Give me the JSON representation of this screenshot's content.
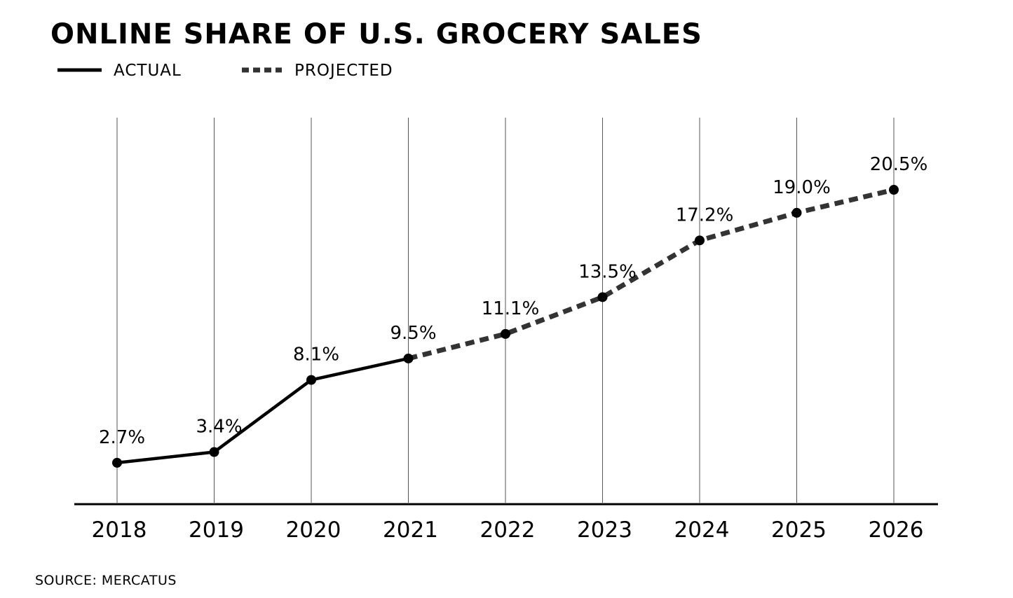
{
  "chart_data": {
    "type": "line",
    "title": "ONLINE SHARE OF U.S. GROCERY SALES",
    "xlabel": "",
    "ylabel": "",
    "ylim": [
      0,
      22
    ],
    "grid": "vertical",
    "legend_position": "top-left",
    "categories": [
      "2018",
      "2019",
      "2020",
      "2021",
      "2022",
      "2023",
      "2024",
      "2025",
      "2026"
    ],
    "data_labels": [
      "2.7%",
      "3.4%",
      "8.1%",
      "9.5%",
      "11.1%",
      "13.5%",
      "17.2%",
      "19.0%",
      "20.5%"
    ],
    "series": [
      {
        "name": "ACTUAL",
        "style": "solid",
        "x": [
          "2018",
          "2019",
          "2020",
          "2021"
        ],
        "values": [
          2.7,
          3.4,
          8.1,
          9.5
        ]
      },
      {
        "name": "PROJECTED",
        "style": "dashed",
        "x": [
          "2021",
          "2022",
          "2023",
          "2024",
          "2025",
          "2026"
        ],
        "values": [
          9.5,
          11.1,
          13.5,
          17.2,
          19.0,
          20.5
        ]
      }
    ],
    "source": "SOURCE: MERCATUS"
  },
  "colors": {
    "actual_line": "#000000",
    "projected_line": "#333333",
    "gridline": "#555555",
    "axis": "#000000",
    "background": "#ffffff"
  }
}
